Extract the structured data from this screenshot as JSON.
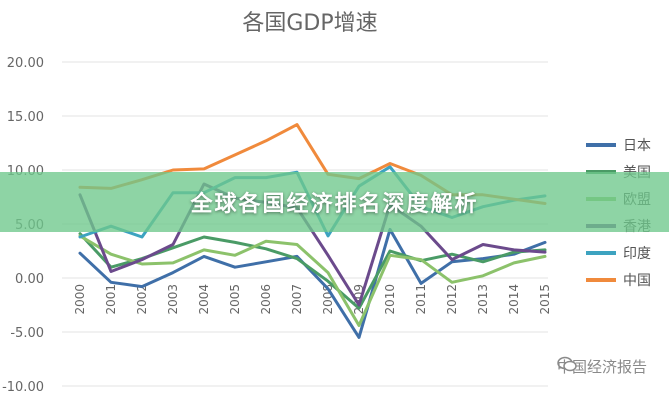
{
  "chart_data": {
    "type": "line",
    "title": "各国GDP增速",
    "xlabel": "",
    "ylabel": "",
    "ylim": [
      -10,
      20
    ],
    "yticks": [
      "20.00",
      "15.00",
      "10.00",
      "5.00",
      "0.00",
      "-5.00",
      "-10.00"
    ],
    "categories": [
      "2000",
      "2001",
      "2002",
      "2003",
      "2004",
      "2005",
      "2006",
      "2007",
      "2008",
      "2009",
      "2010",
      "2011",
      "2012",
      "2013",
      "2014",
      "2015"
    ],
    "grid": true,
    "legend_position": "right",
    "series": [
      {
        "name": "日本",
        "color": "#3f6fa8",
        "values": [
          2.3,
          -0.4,
          -0.8,
          0.5,
          2.0,
          1.0,
          1.5,
          2.0,
          -1.0,
          -5.5,
          4.5,
          -0.5,
          1.5,
          1.8,
          2.2,
          3.3
        ]
      },
      {
        "name": "美国",
        "color": "#4a9b66",
        "values": [
          4.1,
          1.0,
          1.8,
          2.8,
          3.8,
          3.3,
          2.7,
          1.8,
          -0.3,
          -2.8,
          2.5,
          1.6,
          2.2,
          1.5,
          2.4,
          2.6
        ]
      },
      {
        "name": "欧盟",
        "color": "#8cc26b",
        "values": [
          3.9,
          2.2,
          1.3,
          1.4,
          2.6,
          2.1,
          3.4,
          3.1,
          0.5,
          -4.4,
          2.1,
          1.7,
          -0.4,
          0.2,
          1.4,
          2.0
        ]
      },
      {
        "name": "香港",
        "color": "#6b4a8c",
        "values": [
          7.7,
          0.6,
          1.7,
          3.1,
          8.7,
          7.4,
          7.0,
          6.5,
          2.1,
          -2.5,
          6.8,
          4.8,
          1.7,
          3.1,
          2.6,
          2.4
        ]
      },
      {
        "name": "印度",
        "color": "#3da3c0",
        "values": [
          3.8,
          4.8,
          3.8,
          7.9,
          7.9,
          9.3,
          9.3,
          9.8,
          3.9,
          8.5,
          10.3,
          6.6,
          5.6,
          6.6,
          7.2,
          7.6
        ]
      },
      {
        "name": "中国",
        "color": "#f08a3c",
        "values": [
          8.4,
          8.3,
          9.1,
          10.0,
          10.1,
          11.4,
          12.7,
          14.2,
          9.6,
          9.2,
          10.6,
          9.5,
          7.7,
          7.7,
          7.3,
          6.9
        ]
      }
    ]
  },
  "banner": {
    "text": "全球各国经济排名深度解析"
  },
  "watermark": {
    "text": "中国经济报告"
  }
}
